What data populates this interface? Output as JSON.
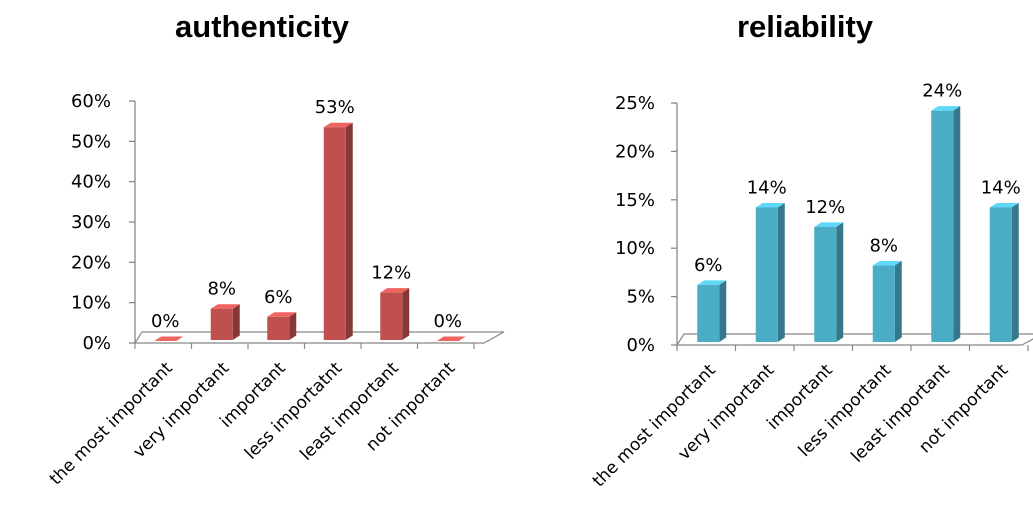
{
  "chart_data": [
    {
      "type": "bar",
      "title": "authenticity",
      "categories": [
        "the most important",
        "very important",
        "important",
        "less importatnt",
        "least important",
        "not important"
      ],
      "values": [
        0,
        8,
        6,
        53,
        12,
        0
      ],
      "data_labels": [
        "0%",
        "8%",
        "6%",
        "53%",
        "12%",
        "0%"
      ],
      "ylim": [
        0,
        60
      ],
      "yticks": [
        "0%",
        "10%",
        "20%",
        "30%",
        "40%",
        "50%",
        "60%"
      ],
      "legend": "none",
      "grid": false,
      "color": "#c0504d"
    },
    {
      "type": "bar",
      "title": "reliability",
      "categories": [
        "the most important",
        "very important",
        "important",
        "less important",
        "least important",
        "not important"
      ],
      "values": [
        6,
        14,
        12,
        8,
        24,
        14
      ],
      "data_labels": [
        "6%",
        "14%",
        "12%",
        "8%",
        "24%",
        "14%"
      ],
      "ylim": [
        0,
        25
      ],
      "yticks": [
        "0%",
        "5%",
        "10%",
        "15%",
        "20%",
        "25%"
      ],
      "legend": "none",
      "grid": false,
      "color": "#4bacc6"
    }
  ]
}
